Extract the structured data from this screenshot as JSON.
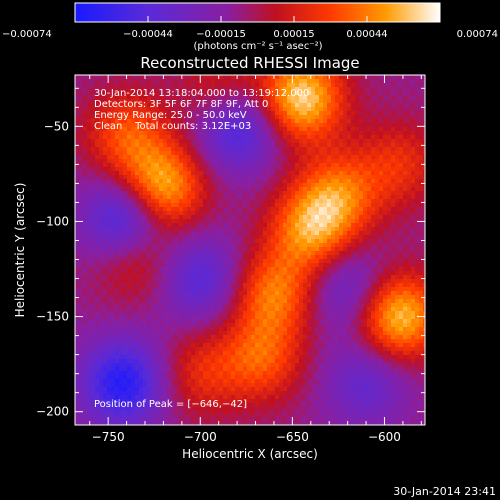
{
  "colorbar": {
    "tick_labels": [
      "−0.00074",
      "−0.00044",
      "−0.00015",
      "0.00015",
      "0.00044",
      "0.00074"
    ],
    "units_label": "(photons cm⁻² s⁻¹ asec⁻²)",
    "range": [
      -0.00074,
      0.00074
    ],
    "colors": [
      "#1a1aff",
      "#5a2ad8",
      "#8a1fa0",
      "#c01020",
      "#ff3a00",
      "#ff9a00",
      "#ffffff"
    ]
  },
  "chart_data": {
    "type": "heatmap",
    "title": "Reconstructed RHESSI Image",
    "xlabel": "Heliocentric X (arcsec)",
    "ylabel": "Heliocentric Y (arcsec)",
    "xlim": [
      -768,
      -578
    ],
    "ylim": [
      -207,
      -23
    ],
    "xticks": [
      -750,
      -700,
      -650,
      -600
    ],
    "yticks": [
      -50,
      -100,
      -150,
      -200
    ],
    "xtick_labels": [
      "−750",
      "−700",
      "−650",
      "−600"
    ],
    "ytick_labels": [
      "−50",
      "−100",
      "−150",
      "−200"
    ],
    "info_lines": [
      "30-Jan-2014 13:18:04.000 to 13:19:12.000",
      "Detectors: 3F 5F 6F 7F 8F 9F, Att 0",
      "Energy Range: 25.0 - 50.0 keV",
      "Clean    Total counts: 3.12E+03"
    ],
    "peak_label": "Position of Peak = [−646,−42]",
    "peak": [
      -646,
      -42
    ],
    "sources": [
      {
        "x": -721,
        "y": -82,
        "value": 0.00068
      },
      {
        "x": -740,
        "y": -54,
        "value": 0.0004
      },
      {
        "x": -645,
        "y": -35,
        "value": 0.00074
      },
      {
        "x": -688,
        "y": -32,
        "value": 0.0003
      },
      {
        "x": -640,
        "y": -105,
        "value": 0.00055
      },
      {
        "x": -660,
        "y": -138,
        "value": 0.0005
      },
      {
        "x": -667,
        "y": -172,
        "value": 0.00042
      },
      {
        "x": -625,
        "y": -86,
        "value": 0.00046
      },
      {
        "x": -592,
        "y": -150,
        "value": 0.0007
      },
      {
        "x": -592,
        "y": -70,
        "value": 0.0003
      },
      {
        "x": -735,
        "y": -118,
        "value": 0.00035
      },
      {
        "x": -700,
        "y": -180,
        "value": 0.00028
      },
      {
        "x": -740,
        "y": -100,
        "value": -0.00062
      },
      {
        "x": -680,
        "y": -50,
        "value": -0.00052
      },
      {
        "x": -742,
        "y": -185,
        "value": -0.0006
      },
      {
        "x": -700,
        "y": -130,
        "value": -0.00038
      },
      {
        "x": -620,
        "y": -135,
        "value": -0.00032
      },
      {
        "x": -610,
        "y": -185,
        "value": -0.0003
      }
    ]
  },
  "footer": {
    "timestamp": "30-Jan-2014 23:41"
  }
}
